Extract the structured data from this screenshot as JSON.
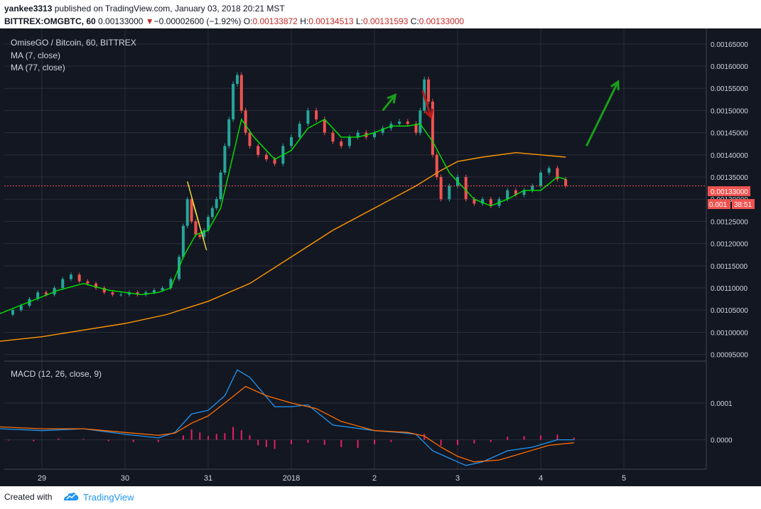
{
  "header": {
    "author": "yankee3313",
    "published_text": "published on TradingView.com, January 03, 2018 20:21 MST",
    "symbol": "BITTREX:OMGBTC, 60",
    "last": "0.00133000",
    "change_arrow": "▼",
    "change": "−0.00002600 (−1.92%)",
    "o_label": "O:",
    "o_value": "0.00133872",
    "h_label": "H:",
    "h_value": "0.00134513",
    "l_label": "L:",
    "l_value": "0.00131593",
    "c_label": "C:",
    "c_value": "0.00133000"
  },
  "legend": {
    "title": "OmiseGO / Bitcoin, 60, BITTREX",
    "ma7": "MA (7, close)",
    "ma77": "MA (77, close)",
    "macd": "MACD (12, 26, close, 9)"
  },
  "price_badge": {
    "price": "0.00133000",
    "short": "0.001",
    "countdown": "38:51"
  },
  "footer": {
    "created_with": "Created with",
    "brand": "TradingView"
  },
  "colors": {
    "background": "#131722",
    "grid": "#2a2e39",
    "up": "#26a69a",
    "down": "#ef5350",
    "ma7": "#00e600",
    "ma77": "#ff9800",
    "macd_line": "#2196f3",
    "signal_line": "#ff6d00",
    "histogram": "#e91e63",
    "arrow_up": "#1a9e1a",
    "arrow_down": "#b71c1c",
    "price_line": "#ef5350",
    "annotation": "#ffeb3b"
  },
  "chart_data": [
    {
      "type": "candlestick",
      "title": "OmiseGO / Bitcoin, 60, BITTREX",
      "x_ticks": [
        "29",
        "30",
        "31",
        "2018",
        "2",
        "3",
        "4",
        "5"
      ],
      "y_ticks": [
        "0.00165000",
        "0.00160000",
        "0.00155000",
        "0.00150000",
        "0.00145000",
        "0.00140000",
        "0.00135000",
        "0.00130000",
        "0.00125000",
        "0.00120000",
        "0.00115000",
        "0.00110000",
        "0.00105000",
        "0.00100000",
        "0.00095000"
      ],
      "ylim": [
        0.000935,
        0.001685
      ],
      "grid": true,
      "close_series": [
        [
          28.55,
          0.00104
        ],
        [
          28.65,
          0.00105
        ],
        [
          28.75,
          0.00106
        ],
        [
          28.85,
          0.001075
        ],
        [
          28.95,
          0.00109
        ],
        [
          29.05,
          0.001085
        ],
        [
          29.15,
          0.0011
        ],
        [
          29.25,
          0.00112
        ],
        [
          29.35,
          0.00113
        ],
        [
          29.45,
          0.001115
        ],
        [
          29.55,
          0.00111
        ],
        [
          29.65,
          0.0011
        ],
        [
          29.75,
          0.00109
        ],
        [
          29.85,
          0.001085
        ],
        [
          29.95,
          0.001085
        ],
        [
          30.05,
          0.00109
        ],
        [
          30.15,
          0.001085
        ],
        [
          30.25,
          0.00109
        ],
        [
          30.35,
          0.001095
        ],
        [
          30.45,
          0.0011
        ],
        [
          30.55,
          0.00112
        ],
        [
          30.65,
          0.00117
        ],
        [
          30.7,
          0.00124
        ],
        [
          30.75,
          0.0013
        ],
        [
          30.8,
          0.00125
        ],
        [
          30.85,
          0.00122
        ],
        [
          30.9,
          0.001215
        ],
        [
          30.95,
          0.00123
        ],
        [
          31.0,
          0.00126
        ],
        [
          31.05,
          0.00128
        ],
        [
          31.1,
          0.0013
        ],
        [
          31.15,
          0.00136
        ],
        [
          31.2,
          0.00142
        ],
        [
          31.25,
          0.00148
        ],
        [
          31.3,
          0.00156
        ],
        [
          31.35,
          0.00158
        ],
        [
          31.4,
          0.0015
        ],
        [
          31.45,
          0.00145
        ],
        [
          31.5,
          0.00142
        ],
        [
          31.6,
          0.0014
        ],
        [
          31.7,
          0.00139
        ],
        [
          31.8,
          0.00138
        ],
        [
          31.9,
          0.00142
        ],
        [
          32.0,
          0.00144
        ],
        [
          32.1,
          0.00147
        ],
        [
          32.2,
          0.0015
        ],
        [
          32.3,
          0.00148
        ],
        [
          32.4,
          0.00145
        ],
        [
          32.5,
          0.00143
        ],
        [
          32.6,
          0.00142
        ],
        [
          32.7,
          0.00144
        ],
        [
          32.8,
          0.00145
        ],
        [
          32.9,
          0.00144
        ],
        [
          33.0,
          0.00145
        ],
        [
          33.1,
          0.00146
        ],
        [
          33.2,
          0.00147
        ],
        [
          33.3,
          0.001475
        ],
        [
          33.4,
          0.00147
        ],
        [
          33.5,
          0.00145
        ],
        [
          33.55,
          0.0015
        ],
        [
          33.6,
          0.00157
        ],
        [
          33.65,
          0.00152
        ],
        [
          33.7,
          0.0014
        ],
        [
          33.75,
          0.00135
        ],
        [
          33.8,
          0.0013
        ],
        [
          33.9,
          0.00133
        ],
        [
          34.0,
          0.00135
        ],
        [
          34.1,
          0.0013
        ],
        [
          34.2,
          0.00129
        ],
        [
          34.3,
          0.0013
        ],
        [
          34.4,
          0.001285
        ],
        [
          34.5,
          0.0013
        ],
        [
          34.6,
          0.00132
        ],
        [
          34.7,
          0.00131
        ],
        [
          34.8,
          0.00132
        ],
        [
          34.9,
          0.00133
        ],
        [
          35.0,
          0.00136
        ],
        [
          35.1,
          0.00137
        ],
        [
          35.2,
          0.001345
        ],
        [
          35.3,
          0.00133
        ]
      ],
      "ma7": [
        [
          28.0,
          0.00101
        ],
        [
          28.4,
          0.001035
        ],
        [
          28.8,
          0.001065
        ],
        [
          29.2,
          0.001095
        ],
        [
          29.5,
          0.00111
        ],
        [
          29.8,
          0.001095
        ],
        [
          30.2,
          0.001085
        ],
        [
          30.4,
          0.00109
        ],
        [
          30.55,
          0.0011
        ],
        [
          30.7,
          0.00117
        ],
        [
          30.85,
          0.00122
        ],
        [
          31.0,
          0.00123
        ],
        [
          31.15,
          0.00128
        ],
        [
          31.25,
          0.00136
        ],
        [
          31.4,
          0.00148
        ],
        [
          31.55,
          0.00144
        ],
        [
          31.8,
          0.00139
        ],
        [
          32.0,
          0.00141
        ],
        [
          32.2,
          0.00146
        ],
        [
          32.4,
          0.00148
        ],
        [
          32.6,
          0.00144
        ],
        [
          32.8,
          0.00144
        ],
        [
          33.0,
          0.00145
        ],
        [
          33.2,
          0.001465
        ],
        [
          33.4,
          0.001465
        ],
        [
          33.55,
          0.00147
        ],
        [
          33.7,
          0.00143
        ],
        [
          33.9,
          0.00136
        ],
        [
          34.0,
          0.00134
        ],
        [
          34.2,
          0.0013
        ],
        [
          34.4,
          0.001285
        ],
        [
          34.6,
          0.0013
        ],
        [
          34.8,
          0.00132
        ],
        [
          35.0,
          0.00132
        ],
        [
          35.2,
          0.00135
        ],
        [
          35.3,
          0.001345
        ]
      ],
      "ma77": [
        [
          28.0,
          0.00099
        ],
        [
          28.5,
          0.00098
        ],
        [
          29.0,
          0.00099
        ],
        [
          29.5,
          0.001005
        ],
        [
          30.0,
          0.00102
        ],
        [
          30.5,
          0.00104
        ],
        [
          31.0,
          0.00107
        ],
        [
          31.5,
          0.00111
        ],
        [
          32.0,
          0.00117
        ],
        [
          32.5,
          0.00123
        ],
        [
          33.0,
          0.00128
        ],
        [
          33.5,
          0.00133
        ],
        [
          33.8,
          0.001365
        ],
        [
          34.0,
          0.001385
        ],
        [
          34.3,
          0.001395
        ],
        [
          34.7,
          0.001405
        ],
        [
          35.0,
          0.0014
        ],
        [
          35.3,
          0.001395
        ]
      ],
      "current_price": 0.00133
    },
    {
      "type": "line",
      "title": "MACD (12, 26, close, 9)",
      "y_ticks": [
        "0.0001",
        "0.0000"
      ],
      "ylim": [
        -8e-05,
        0.00021
      ],
      "series": [
        {
          "points": [
            [
              28.0,
              2.5e-05
            ],
            [
              28.5,
              3e-05
            ],
            [
              29.0,
              2.5e-05
            ],
            [
              29.5,
              3e-05
            ],
            [
              30.0,
              1.5e-05
            ],
            [
              30.4,
              5e-06
            ],
            [
              30.6,
              2e-05
            ],
            [
              30.8,
              7e-05
            ],
            [
              31.0,
              8e-05
            ],
            [
              31.2,
              0.00012
            ],
            [
              31.35,
              0.00019
            ],
            [
              31.5,
              0.00017
            ],
            [
              31.8,
              9e-05
            ],
            [
              32.0,
              9e-05
            ],
            [
              32.2,
              9.5e-05
            ],
            [
              32.5,
              4e-05
            ],
            [
              33.0,
              2.5e-05
            ],
            [
              33.3,
              2e-05
            ],
            [
              33.5,
              1.5e-05
            ],
            [
              33.7,
              -3e-05
            ],
            [
              33.9,
              -5e-05
            ],
            [
              34.1,
              -7e-05
            ],
            [
              34.3,
              -6e-05
            ],
            [
              34.6,
              -3e-05
            ],
            [
              34.9,
              -2e-05
            ],
            [
              35.2,
              0.0
            ],
            [
              35.4,
              0.0
            ]
          ]
        },
        {
          "points": [
            [
              28.0,
              3e-05
            ],
            [
              28.5,
              3.5e-05
            ],
            [
              29.0,
              3e-05
            ],
            [
              29.5,
              3e-05
            ],
            [
              30.0,
              2e-05
            ],
            [
              30.4,
              1.2e-05
            ],
            [
              30.6,
              1.8e-05
            ],
            [
              30.8,
              4.5e-05
            ],
            [
              31.0,
              6.5e-05
            ],
            [
              31.2,
              0.0001
            ],
            [
              31.45,
              0.000145
            ],
            [
              31.7,
              0.00012
            ],
            [
              32.0,
              0.0001
            ],
            [
              32.3,
              8.5e-05
            ],
            [
              32.6,
              5e-05
            ],
            [
              33.0,
              2.5e-05
            ],
            [
              33.4,
              2e-05
            ],
            [
              33.6,
              1e-05
            ],
            [
              33.8,
              -2e-05
            ],
            [
              34.0,
              -4.5e-05
            ],
            [
              34.2,
              -6e-05
            ],
            [
              34.5,
              -5.5e-05
            ],
            [
              34.8,
              -3.5e-05
            ],
            [
              35.1,
              -1.5e-05
            ],
            [
              35.4,
              -8e-06
            ]
          ]
        }
      ],
      "histogram": [
        [
          28.0,
          4e-06
        ],
        [
          28.3,
          2e-06
        ],
        [
          28.6,
          -2e-06
        ],
        [
          28.9,
          -4e-06
        ],
        [
          29.2,
          4e-06
        ],
        [
          29.5,
          2e-06
        ],
        [
          29.8,
          -4e-06
        ],
        [
          30.1,
          -6e-06
        ],
        [
          30.4,
          -6e-06
        ],
        [
          30.7,
          1.2e-05
        ],
        [
          30.8,
          2.8e-05
        ],
        [
          30.9,
          2e-05
        ],
        [
          31.0,
          1e-05
        ],
        [
          31.1,
          1.6e-05
        ],
        [
          31.2,
          1.8e-05
        ],
        [
          31.3,
          3.5e-05
        ],
        [
          31.4,
          2.6e-05
        ],
        [
          31.5,
          1.2e-05
        ],
        [
          31.6,
          -1.5e-05
        ],
        [
          31.7,
          -2e-05
        ],
        [
          31.8,
          -2.5e-05
        ],
        [
          32.0,
          -1.2e-05
        ],
        [
          32.2,
          -8e-06
        ],
        [
          32.4,
          -1.4e-05
        ],
        [
          32.6,
          -2e-05
        ],
        [
          32.8,
          -2.2e-05
        ],
        [
          33.0,
          -1.2e-05
        ],
        [
          33.2,
          -6e-06
        ],
        [
          33.4,
          0.0
        ],
        [
          33.6,
          1.6e-05
        ],
        [
          33.8,
          -1.6e-05
        ],
        [
          34.0,
          -1.4e-05
        ],
        [
          34.2,
          -1e-05
        ],
        [
          34.4,
          -6e-06
        ],
        [
          34.6,
          8e-06
        ],
        [
          34.8,
          1e-05
        ],
        [
          35.0,
          1.2e-05
        ],
        [
          35.2,
          1.4e-05
        ],
        [
          35.4,
          6e-06
        ]
      ]
    }
  ]
}
